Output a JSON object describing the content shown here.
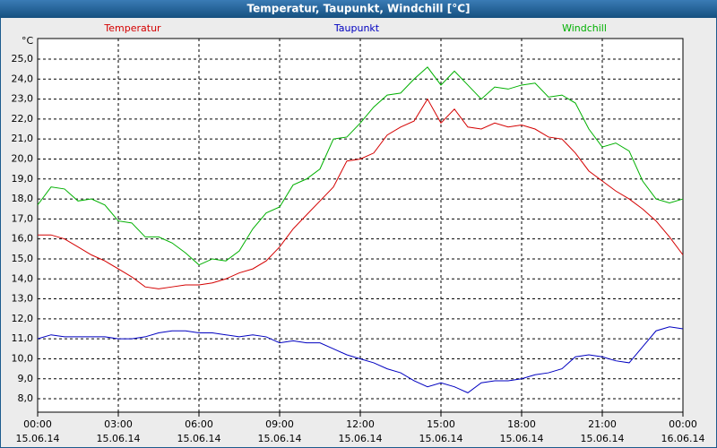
{
  "chart_data": {
    "type": "line",
    "title": "Temperatur, Taupunkt, Windchill [°C]",
    "y_label": "°C",
    "x": [
      0,
      0.5,
      1,
      1.5,
      2,
      2.5,
      3,
      3.5,
      4,
      4.5,
      5,
      5.5,
      6,
      6.5,
      7,
      7.5,
      8,
      8.5,
      9,
      9.5,
      10,
      10.5,
      11,
      11.5,
      12,
      12.5,
      13,
      13.5,
      14,
      14.5,
      15,
      15.5,
      16,
      16.5,
      17,
      17.5,
      18,
      18.5,
      19,
      19.5,
      20,
      20.5,
      21,
      21.5,
      22,
      22.5,
      23,
      23.5,
      24
    ],
    "series": [
      {
        "name": "Temperatur",
        "color": "#d40000",
        "values": [
          16.2,
          16.2,
          16.0,
          15.6,
          15.2,
          14.9,
          14.5,
          14.1,
          13.6,
          13.5,
          13.6,
          13.7,
          13.7,
          13.8,
          14.0,
          14.3,
          14.5,
          14.9,
          15.6,
          16.5,
          17.2,
          17.9,
          18.6,
          19.9,
          20.0,
          20.3,
          21.2,
          21.6,
          21.9,
          23.0,
          21.8,
          22.5,
          21.6,
          21.5,
          21.8,
          21.6,
          21.7,
          21.5,
          21.1,
          21.0,
          20.3,
          19.4,
          18.9,
          18.4,
          18.0,
          17.5,
          16.9,
          16.1,
          15.2
        ]
      },
      {
        "name": "Taupunkt",
        "color": "#0000c0",
        "values": [
          11.0,
          11.2,
          11.1,
          11.1,
          11.1,
          11.1,
          11.0,
          11.0,
          11.1,
          11.3,
          11.4,
          11.4,
          11.3,
          11.3,
          11.2,
          11.1,
          11.2,
          11.1,
          10.8,
          10.9,
          10.8,
          10.8,
          10.5,
          10.2,
          10.0,
          9.8,
          9.5,
          9.3,
          8.9,
          8.6,
          8.8,
          8.6,
          8.3,
          8.8,
          8.9,
          8.9,
          9.0,
          9.2,
          9.3,
          9.5,
          10.1,
          10.2,
          10.1,
          9.9,
          9.8,
          10.6,
          11.4,
          11.6,
          11.5
        ]
      },
      {
        "name": "Windchill",
        "color": "#00b000",
        "values": [
          17.7,
          18.6,
          18.5,
          17.9,
          18.0,
          17.7,
          16.9,
          16.8,
          16.1,
          16.1,
          15.8,
          15.3,
          14.7,
          15.0,
          14.9,
          15.4,
          16.5,
          17.3,
          17.6,
          18.7,
          19.0,
          19.5,
          21.0,
          21.1,
          21.8,
          22.6,
          23.2,
          23.3,
          24.0,
          24.6,
          23.7,
          24.4,
          23.7,
          23.0,
          23.6,
          23.5,
          23.7,
          23.8,
          23.1,
          23.2,
          22.8,
          21.5,
          20.6,
          20.8,
          20.4,
          18.9,
          18.0,
          17.8,
          18.0
        ]
      }
    ],
    "xlim": [
      0,
      24
    ],
    "xticks": [
      {
        "value": 0,
        "label": "00:00",
        "date": "15.06.14"
      },
      {
        "value": 3,
        "label": "03:00",
        "date": "15.06.14"
      },
      {
        "value": 6,
        "label": "06:00",
        "date": "15.06.14"
      },
      {
        "value": 9,
        "label": "09:00",
        "date": "15.06.14"
      },
      {
        "value": 12,
        "label": "12:00",
        "date": "15.06.14"
      },
      {
        "value": 15,
        "label": "15:00",
        "date": "15.06.14"
      },
      {
        "value": 18,
        "label": "18:00",
        "date": "15.06.14"
      },
      {
        "value": 21,
        "label": "21:00",
        "date": "15.06.14"
      },
      {
        "value": 24,
        "label": "00:00",
        "date": "16.06.14"
      }
    ],
    "ylim": [
      7.33,
      26.03
    ],
    "yticks": [
      {
        "value": 8,
        "label": "8,0"
      },
      {
        "value": 9,
        "label": "9,0"
      },
      {
        "value": 10,
        "label": "10,0"
      },
      {
        "value": 11,
        "label": "11,0"
      },
      {
        "value": 12,
        "label": "12,0"
      },
      {
        "value": 13,
        "label": "13,0"
      },
      {
        "value": 14,
        "label": "14,0"
      },
      {
        "value": 15,
        "label": "15,0"
      },
      {
        "value": 16,
        "label": "16,0"
      },
      {
        "value": 17,
        "label": "17,0"
      },
      {
        "value": 18,
        "label": "18,0"
      },
      {
        "value": 19,
        "label": "19,0"
      },
      {
        "value": 20,
        "label": "20,0"
      },
      {
        "value": 21,
        "label": "21,0"
      },
      {
        "value": 22,
        "label": "22,0"
      },
      {
        "value": 23,
        "label": "23,0"
      },
      {
        "value": 24,
        "label": "24,0"
      },
      {
        "value": 25,
        "label": "25,0"
      }
    ],
    "grid": true
  }
}
